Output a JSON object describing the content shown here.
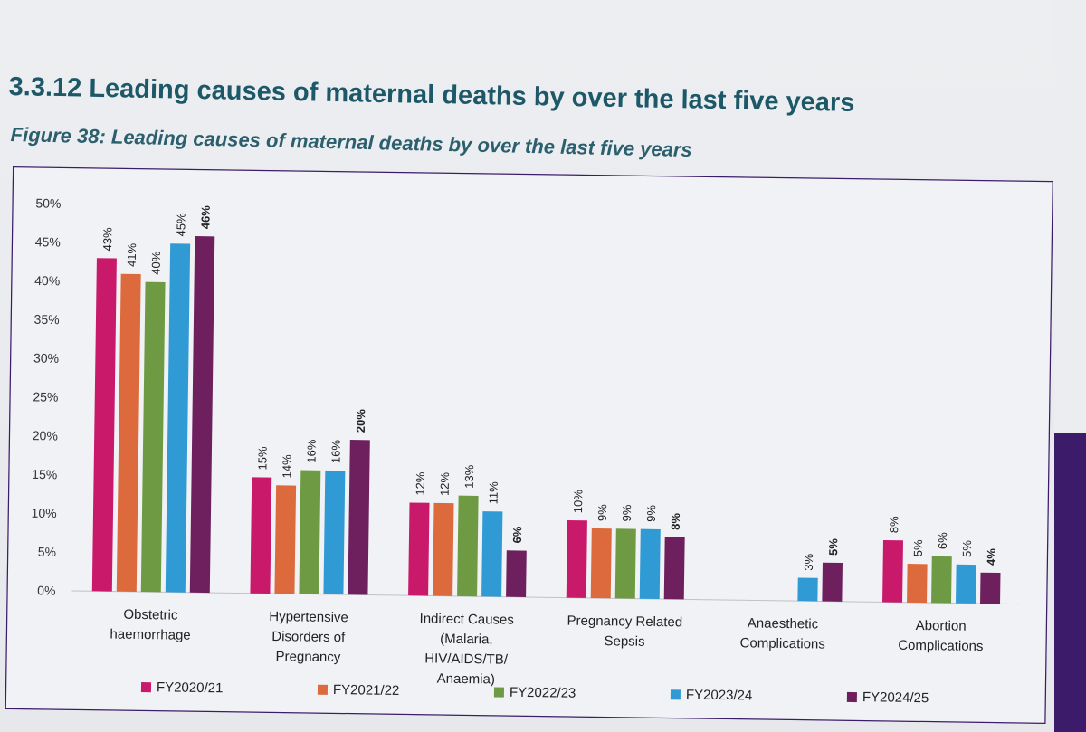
{
  "header": {
    "section_title": "3.3.12 Leading causes of maternal deaths by over the last five years",
    "figure_title": "Figure 38: Leading causes of maternal deaths by over the last five years"
  },
  "colors": {
    "FY2020/21": "#c8196b",
    "FY2021/22": "#dd6a3c",
    "FY2022/23": "#6e9a43",
    "FY2023/24": "#2f9ad4",
    "FY2024/25": "#6d1f5e"
  },
  "chart_data": {
    "type": "bar",
    "title": "",
    "xlabel": "",
    "ylabel": "",
    "ylim": [
      0,
      50
    ],
    "yticks": [
      "0%",
      "5%",
      "10%",
      "15%",
      "20%",
      "25%",
      "30%",
      "35%",
      "40%",
      "45%",
      "50%"
    ],
    "categories": [
      [
        "Obstetric",
        "haemorrhage"
      ],
      [
        "Hypertensive",
        "Disorders of",
        "Pregnancy"
      ],
      [
        "Indirect Causes",
        "(Malaria,",
        "HIV/AIDS/TB/",
        "Anaemia)"
      ],
      [
        "Pregnancy Related",
        "Sepsis"
      ],
      [
        "Anaesthetic",
        "Complications"
      ],
      [
        "Abortion",
        "Complications"
      ]
    ],
    "series": [
      {
        "name": "FY2020/21",
        "values": [
          43,
          15,
          12,
          10,
          null,
          8
        ],
        "labels": [
          "43%",
          "15%",
          "12%",
          "10%",
          "",
          "8%"
        ]
      },
      {
        "name": "FY2021/22",
        "values": [
          41,
          14,
          12,
          9,
          null,
          5
        ],
        "labels": [
          "41%",
          "14%",
          "12%",
          "9%",
          "",
          "5%"
        ]
      },
      {
        "name": "FY2022/23",
        "values": [
          40,
          16,
          13,
          9,
          null,
          6
        ],
        "labels": [
          "40%",
          "16%",
          "13%",
          "9%",
          "",
          "6%"
        ]
      },
      {
        "name": "FY2023/24",
        "values": [
          45,
          16,
          11,
          9,
          3,
          5
        ],
        "labels": [
          "45%",
          "16%",
          "11%",
          "9%",
          "3%",
          "5%"
        ]
      },
      {
        "name": "FY2024/25",
        "values": [
          46,
          20,
          6,
          8,
          5,
          4
        ],
        "labels": [
          "46%",
          "20%",
          "6%",
          "8%",
          "5%",
          "4%"
        ]
      }
    ],
    "bold_series": "FY2024/25",
    "legend_position": "bottom"
  }
}
